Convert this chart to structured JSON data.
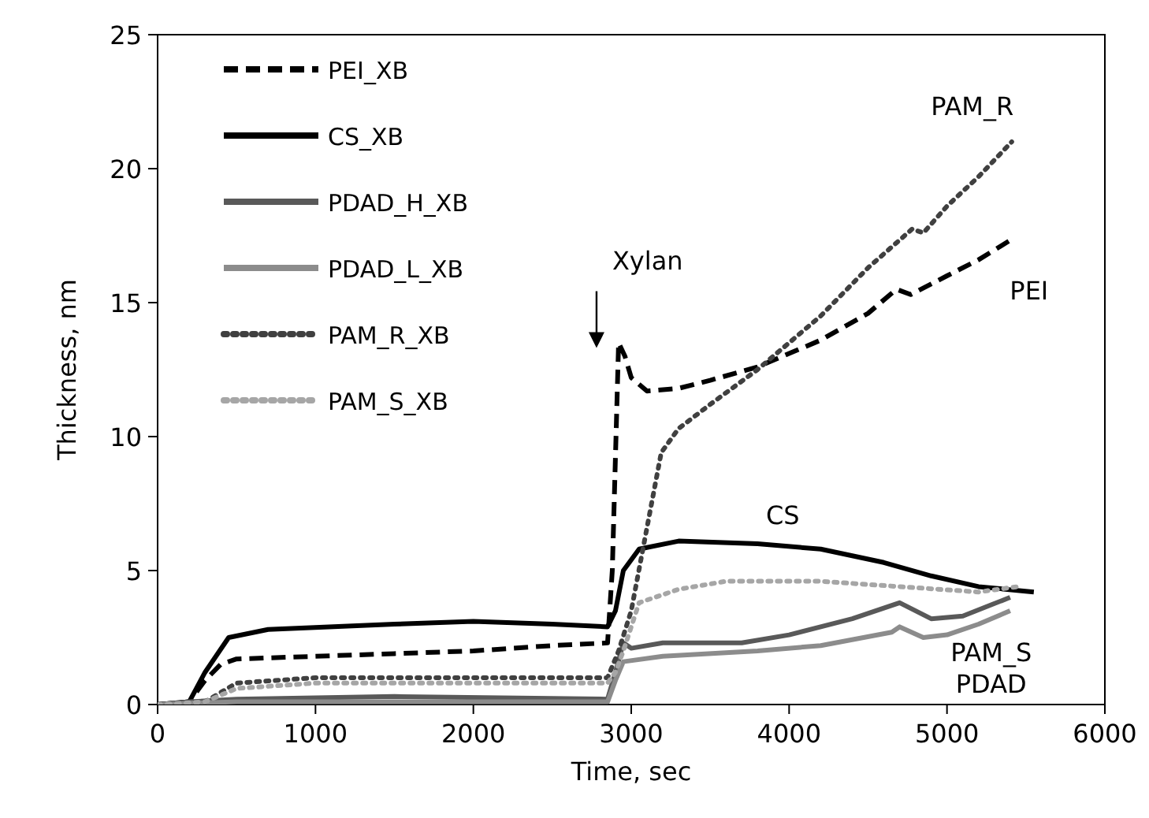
{
  "chart_data": {
    "type": "line",
    "xlabel": "Time, sec",
    "ylabel": "Thickness, nm",
    "xlim": [
      0,
      6000
    ],
    "xticks": [
      0,
      1000,
      2000,
      3000,
      4000,
      5000,
      6000
    ],
    "ylim": [
      0,
      25
    ],
    "yticks": [
      0,
      5,
      10,
      15,
      20,
      25
    ],
    "grid": false,
    "legend": "top left",
    "marker": "none",
    "series": [
      {
        "name": "PEI_XB",
        "color": "#000000",
        "line_style": "dashed",
        "x": [
          0,
          200,
          300,
          400,
          500,
          1000,
          1500,
          2000,
          2500,
          2850,
          2880,
          2920,
          2960,
          3000,
          3100,
          3300,
          3500,
          3800,
          4200,
          4500,
          4680,
          4770,
          5000,
          5200,
          5420
        ],
        "values": [
          0,
          0.1,
          0.9,
          1.5,
          1.7,
          1.8,
          1.9,
          2.0,
          2.2,
          2.3,
          5,
          13.5,
          13.0,
          12.2,
          11.7,
          11.8,
          12.1,
          12.6,
          13.6,
          14.6,
          15.5,
          15.3,
          16.0,
          16.6,
          17.4
        ]
      },
      {
        "name": "CS_XB",
        "color": "#000000",
        "line_style": "solid",
        "x": [
          0,
          200,
          300,
          450,
          700,
          1500,
          2000,
          2500,
          2850,
          2900,
          2950,
          3050,
          3300,
          3800,
          4200,
          4600,
          4900,
          5200,
          5550
        ],
        "values": [
          0,
          0.1,
          1.2,
          2.5,
          2.8,
          3.0,
          3.1,
          3.0,
          2.9,
          3.5,
          5.0,
          5.8,
          6.1,
          6.0,
          5.8,
          5.3,
          4.8,
          4.4,
          4.2
        ]
      },
      {
        "name": "PDAD_H_XB",
        "color": "#595959",
        "line_style": "solid",
        "x": [
          0,
          200,
          500,
          1500,
          2850,
          2900,
          2950,
          3000,
          3200,
          3700,
          4000,
          4400,
          4700,
          4900,
          5100,
          5400
        ],
        "values": [
          0,
          0.1,
          0.2,
          0.3,
          0.2,
          1.2,
          2.3,
          2.1,
          2.3,
          2.3,
          2.6,
          3.2,
          3.8,
          3.2,
          3.3,
          4.0
        ]
      },
      {
        "name": "PDAD_L_XB",
        "color": "#8c8c8c",
        "line_style": "solid",
        "x": [
          0,
          200,
          500,
          1500,
          2850,
          2900,
          2950,
          3200,
          3800,
          4200,
          4650,
          4700,
          4850,
          5000,
          5200,
          5400
        ],
        "values": [
          0,
          0.05,
          0.1,
          0.1,
          0.1,
          0.9,
          1.6,
          1.8,
          2.0,
          2.2,
          2.7,
          2.9,
          2.5,
          2.6,
          3.0,
          3.5
        ]
      },
      {
        "name": "PAM_R_XB",
        "color": "#404040",
        "line_style": "dotted",
        "x": [
          0,
          300,
          500,
          1000,
          2000,
          2850,
          2920,
          3000,
          3090,
          3190,
          3300,
          3500,
          3800,
          4200,
          4500,
          4780,
          4850,
          5000,
          5200,
          5410
        ],
        "values": [
          0,
          0.1,
          0.8,
          1.0,
          1.0,
          1.0,
          2.0,
          3.5,
          6.3,
          9.4,
          10.3,
          11.2,
          12.5,
          14.5,
          16.3,
          17.75,
          17.6,
          18.6,
          19.7,
          21.0
        ]
      },
      {
        "name": "PAM_S_XB",
        "color": "#a6a6a6",
        "line_style": "dotted",
        "x": [
          0,
          300,
          500,
          1000,
          2000,
          2850,
          2900,
          2950,
          3050,
          3300,
          3600,
          4200,
          4700,
          5200,
          5450
        ],
        "values": [
          0,
          0.1,
          0.6,
          0.8,
          0.8,
          0.8,
          1.2,
          2.0,
          3.8,
          4.3,
          4.6,
          4.6,
          4.4,
          4.2,
          4.4
        ]
      }
    ],
    "annotations": [
      "Xylan",
      "PAM_R",
      "PEI",
      "CS",
      "PAM_S",
      "PDAD"
    ]
  }
}
